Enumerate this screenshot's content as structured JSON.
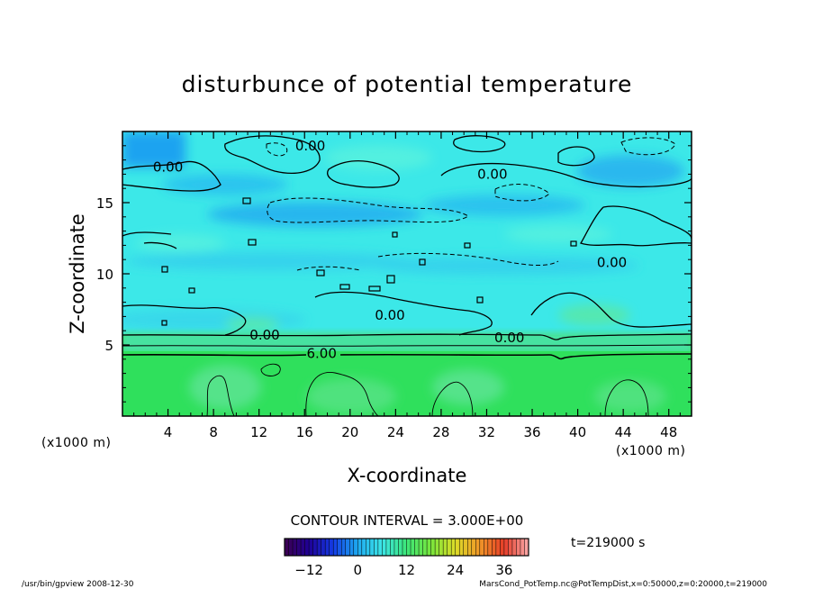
{
  "chart_data": {
    "type": "heatmap",
    "title": "disturbunce of potential temperature",
    "xlabel": "X-coordinate",
    "ylabel": "Z-coordinate",
    "x_unit": "(x1000 m)",
    "xlim": [
      0,
      50
    ],
    "ylim": [
      0,
      20
    ],
    "x_ticks": [
      "4",
      "8",
      "12",
      "16",
      "20",
      "24",
      "28",
      "32",
      "36",
      "40",
      "44",
      "48"
    ],
    "x_tick_values": [
      4,
      8,
      12,
      16,
      20,
      24,
      28,
      32,
      36,
      40,
      44,
      48
    ],
    "y_ticks": [
      "5",
      "10",
      "15"
    ],
    "y_tick_values": [
      5,
      10,
      15
    ],
    "contour_interval_text": "CONTOUR INTERVAL = 3.000E+00",
    "time_text": "t=219000 s",
    "colorbar": {
      "range": [
        -18,
        42
      ],
      "tick_labels": [
        "−12",
        "0",
        "12",
        "24",
        "36"
      ],
      "tick_values": [
        -12,
        0,
        12,
        24,
        36
      ]
    },
    "contour_labels": [
      {
        "text": "0.00",
        "x": 16.5,
        "z": 19.0
      },
      {
        "text": "0.00",
        "x": 4.0,
        "z": 17.5
      },
      {
        "text": "0.00",
        "x": 32.5,
        "z": 17.0
      },
      {
        "text": "0.00",
        "x": 43.0,
        "z": 10.8
      },
      {
        "text": "0.00",
        "x": 23.5,
        "z": 7.1
      },
      {
        "text": "0.00",
        "x": 12.5,
        "z": 5.7
      },
      {
        "text": "0.00",
        "x": 34.0,
        "z": 5.5
      },
      {
        "text": "6.00",
        "x": 17.5,
        "z": 4.4
      }
    ],
    "bands": [
      {
        "name": "lower layer",
        "z_range": [
          0,
          4.5
        ],
        "value": 12
      },
      {
        "name": "upper layer",
        "z_range": [
          4.5,
          20
        ],
        "value": 3
      }
    ]
  },
  "footer": {
    "left": "/usr/bin/gpview   2008-12-30",
    "right": "MarsCond_PotTemp.nc@PotTempDist,x=0:50000,z=0:20000,t=219000"
  },
  "colors": {
    "lower": "#2ee05a",
    "upper": "#3ce8e8",
    "blue": "#1fa3f0",
    "cyan_light": "#4ff0e6",
    "green_light": "#55e38a"
  }
}
